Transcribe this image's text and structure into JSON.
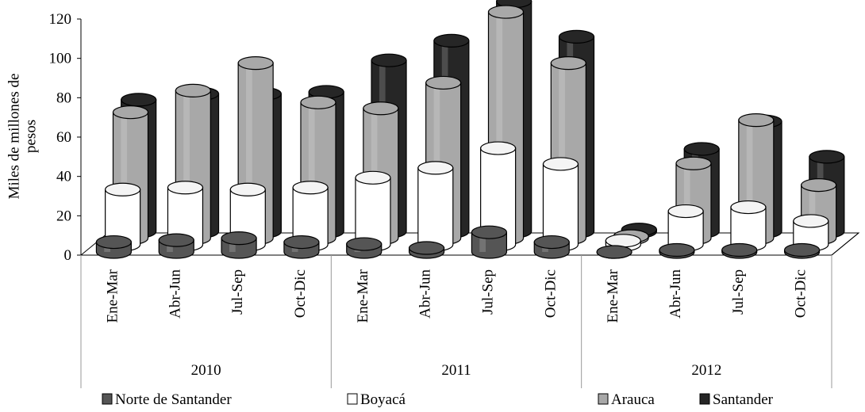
{
  "chart_data": {
    "type": "bar",
    "subtype": "3d-cylinder-clustered",
    "ylabel": "Miles de millones de pesos",
    "ylim": [
      0,
      120
    ],
    "yticks": [
      "0",
      "20",
      "40",
      "60",
      "80",
      "100",
      "120"
    ],
    "grid": false,
    "legend_position": "bottom",
    "groups": [
      {
        "label": "2010",
        "categories": [
          "Ene-Mar",
          "Abr-Jun",
          "Jul-Sep",
          "Oct-Dic"
        ]
      },
      {
        "label": "2011",
        "categories": [
          "Ene-Mar",
          "Abr-Jun",
          "Jul-Sep",
          "Oct-Dic"
        ]
      },
      {
        "label": "2012",
        "categories": [
          "Ene-Mar",
          "Abr-Jun",
          "Jul-Sep",
          "Oct-Dic"
        ]
      }
    ],
    "series": [
      {
        "name": "Norte de Santander",
        "color": "#555555",
        "values": [
          5,
          6,
          7,
          5,
          4,
          2,
          10,
          5,
          0,
          1,
          1,
          1
        ]
      },
      {
        "name": "Boyacá",
        "color": "#ffffff",
        "values": [
          28,
          29,
          28,
          29,
          34,
          39,
          49,
          41,
          2,
          17,
          19,
          12
        ]
      },
      {
        "name": "Arauca",
        "color": "#a8a8a8",
        "values": [
          64,
          75,
          89,
          69,
          66,
          79,
          115,
          89,
          1,
          38,
          60,
          27
        ]
      },
      {
        "name": "Santander",
        "color": "#262626",
        "values": [
          67,
          70,
          70,
          71,
          87,
          97,
          117,
          99,
          1,
          42,
          56,
          38
        ]
      }
    ]
  }
}
